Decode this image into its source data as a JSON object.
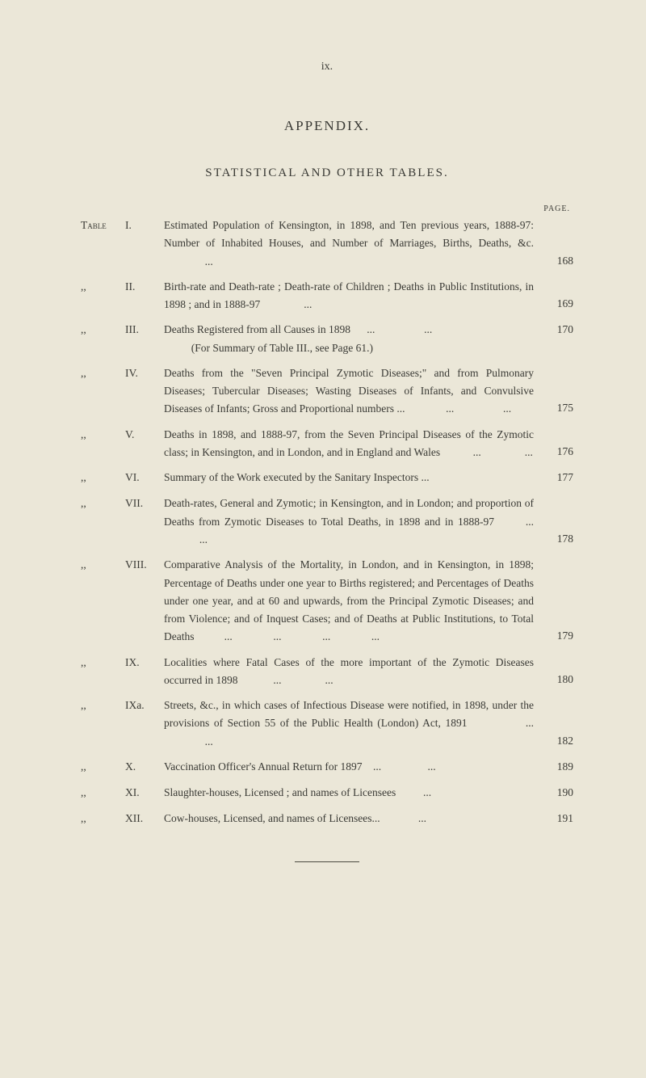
{
  "page_number": "ix.",
  "title": "APPENDIX.",
  "subtitle": "STATISTICAL AND OTHER TABLES.",
  "page_label": "PAGE.",
  "table_prefix": "Table",
  "ditto": ",,",
  "entries": [
    {
      "prefix": "Table",
      "number": "I.",
      "text": "Estimated Population of Kensington, in 1898, and Ten previous years, 1888-97: Number of Inhabited Houses, and Number of Marriages, Births, Deaths, &c.                ...",
      "page": "168"
    },
    {
      "prefix": ",,",
      "number": "II.",
      "text": "Birth-rate and Death-rate ; Death-rate of Children ; Deaths in Public Institutions, in 1898 ; and in 1888-97                ...",
      "page": "169"
    },
    {
      "prefix": ",,",
      "number": "III.",
      "text": "Deaths Registered from all Causes in 1898      ...                  ...\n          (For Summary of Table III., see Page 61.)",
      "page": "170"
    },
    {
      "prefix": ",,",
      "number": "IV.",
      "text": "Deaths from the \"Seven Principal Zymotic Diseases;\" and from Pulmonary Diseases; Tubercular Diseases; Wasting Diseases of Infants, and Convulsive Diseases of Infants; Gross and Proportional numbers ...               ...                  ...",
      "page": "175"
    },
    {
      "prefix": ",,",
      "number": "V.",
      "text": "Deaths in 1898, and 1888-97, from the Seven Principal Diseases of the Zymotic class; in Kensington, and in London, and in England and Wales            ...                ...",
      "page": "176"
    },
    {
      "prefix": ",,",
      "number": "VI.",
      "text": "Summary of the Work executed by the Sanitary Inspectors ...",
      "page": "177"
    },
    {
      "prefix": ",,",
      "number": "VII.",
      "text": "Death-rates, General and Zymotic; in Kensington, and in London; and proportion of Deaths from Zymotic Diseases to Total Deaths, in 1898 and in 1888-97       ...              ...",
      "page": "178"
    },
    {
      "prefix": ",,",
      "number": "VIII.",
      "text": "Comparative Analysis of the Mortality, in London, and in Kensington, in 1898; Percentage of Deaths under one year to Births registered; and Percentages of Deaths under one year, and at 60 and upwards, from the Principal Zymotic Diseases; and from Violence; and of Inquest Cases; and of Deaths at Public Institutions, to Total Deaths           ...               ...               ...               ...",
      "page": "179"
    },
    {
      "prefix": ",,",
      "number": "IX.",
      "text": "Localities where Fatal Cases of the more important of the Zymotic Diseases occurred in 1898             ...                ...",
      "page": "180"
    },
    {
      "prefix": ",,",
      "number": "IXa.",
      "text": "Streets, &c., in which cases of Infectious Disease were notified, in 1898, under the provisions of Section 55 of the Public Health (London) Act, 1891             ...                ...",
      "page": "182"
    },
    {
      "prefix": ",,",
      "number": "X.",
      "text": "Vaccination Officer's Annual Return for 1897    ...                 ...",
      "page": "189"
    },
    {
      "prefix": ",,",
      "number": "XI.",
      "text": "Slaughter-houses, Licensed ; and names of Licensees          ...",
      "page": "190"
    },
    {
      "prefix": ",,",
      "number": "XII.",
      "text": "Cow-houses, Licensed, and names of Licensees...              ...",
      "page": "191"
    }
  ]
}
